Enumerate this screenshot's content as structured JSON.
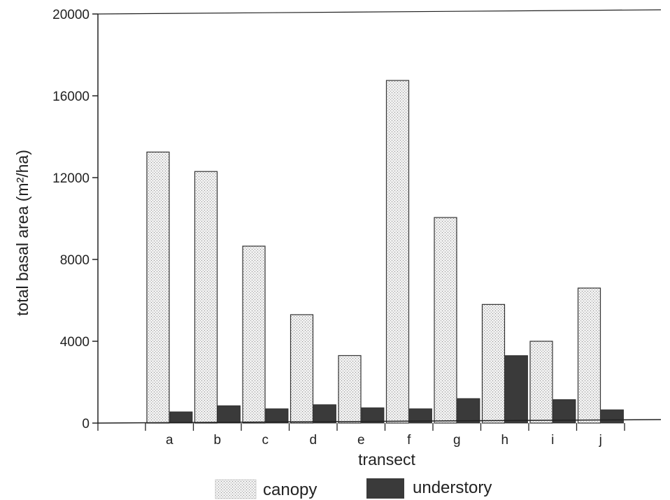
{
  "chart_data": {
    "type": "bar",
    "xlabel": "transect",
    "ylabel": "total basal area (m²/ha)",
    "ylim": [
      0,
      20000
    ],
    "yticks": [
      0,
      4000,
      8000,
      12000,
      16000,
      20000
    ],
    "categories": [
      "a",
      "b",
      "c",
      "d",
      "e",
      "f",
      "g",
      "h",
      "i",
      "j"
    ],
    "series": [
      {
        "name": "canopy",
        "values": [
          13250,
          12300,
          8650,
          5300,
          3300,
          16750,
          10050,
          5800,
          4000,
          6600
        ],
        "color": "#ececec",
        "pattern": "stippled"
      },
      {
        "name": "understory",
        "values": [
          550,
          850,
          700,
          900,
          750,
          700,
          1200,
          3300,
          1150,
          650
        ],
        "color": "#3a3a3a",
        "pattern": "solid"
      }
    ],
    "legend_position": "bottom",
    "grid": false
  }
}
